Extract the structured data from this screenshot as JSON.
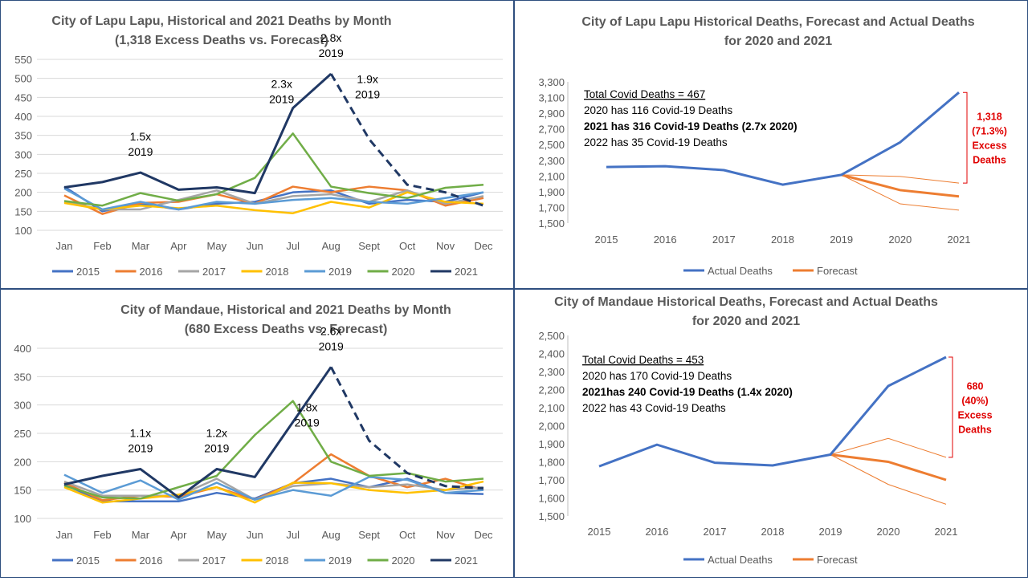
{
  "chart_data": [
    {
      "type": "line",
      "title": "City of Lapu Lapu, Historical and 2021 Deaths by Month",
      "subtitle": "(1,318 Excess Deaths vs. Forecast)",
      "categories": [
        "Jan",
        "Feb",
        "Mar",
        "Apr",
        "May",
        "Jun",
        "Jul",
        "Aug",
        "Sept",
        "Oct",
        "Nov",
        "Dec"
      ],
      "y_ticks": [
        "100",
        "150",
        "200",
        "250",
        "300",
        "350",
        "400",
        "450",
        "500",
        "550"
      ],
      "ylim": [
        100,
        550
      ],
      "grid": true,
      "legend": "bottom",
      "series": [
        {
          "name": "2015",
          "color": "#4472c4",
          "values": [
            215,
            150,
            170,
            155,
            170,
            175,
            200,
            205,
            170,
            180,
            175,
            200
          ]
        },
        {
          "name": "2016",
          "color": "#ed7d31",
          "values": [
            192,
            143,
            172,
            175,
            195,
            170,
            215,
            200,
            215,
            205,
            165,
            185
          ]
        },
        {
          "name": "2017",
          "color": "#a5a5a5",
          "values": [
            175,
            155,
            155,
            180,
            205,
            170,
            190,
            195,
            175,
            205,
            170,
            190
          ]
        },
        {
          "name": "2018",
          "color": "#ffc000",
          "values": [
            172,
            155,
            165,
            158,
            165,
            153,
            145,
            175,
            160,
            200,
            175,
            170
          ]
        },
        {
          "name": "2019",
          "color": "#5b9bd5",
          "values": [
            210,
            155,
            175,
            155,
            175,
            170,
            180,
            185,
            175,
            170,
            185,
            200
          ]
        },
        {
          "name": "2020",
          "color": "#70ad47",
          "values": [
            177,
            165,
            198,
            178,
            195,
            238,
            355,
            215,
            198,
            185,
            212,
            220
          ]
        },
        {
          "name": "2021",
          "color": "#203864",
          "values": [
            213,
            227,
            252,
            207,
            213,
            198,
            422,
            512,
            340,
            220,
            200,
            165
          ],
          "solid_upto": "Aug"
        }
      ],
      "annotations": [
        {
          "line1": "1.5x",
          "line2": "2019",
          "category": "Mar"
        },
        {
          "line1": "2.3x",
          "line2": "2019",
          "category": "Jul"
        },
        {
          "line1": "2.8x",
          "line2": "2019",
          "category": "Aug"
        },
        {
          "line1": "1.9x",
          "line2": "2019",
          "category": "Sept"
        }
      ]
    },
    {
      "type": "line",
      "title": "City of Lapu Lapu Historical Deaths, Forecast and Actual Deaths",
      "subtitle": "for 2020 and 2021",
      "categories": [
        "2015",
        "2016",
        "2017",
        "2018",
        "2019",
        "2020",
        "2021"
      ],
      "y_ticks": [
        "1,500",
        "1,700",
        "1,900",
        "2,100",
        "2,300",
        "2,500",
        "2,700",
        "2,900",
        "3,100",
        "3,300"
      ],
      "ylim": [
        1500,
        3300
      ],
      "legend": "bottom",
      "series": [
        {
          "name": "Actual Deaths",
          "color": "#4472c4",
          "values": [
            2215,
            2225,
            2175,
            1990,
            2115,
            2530,
            3165
          ]
        },
        {
          "name": "Forecast",
          "color": "#ed7d31",
          "values": [
            null,
            null,
            null,
            null,
            2115,
            1920,
            1840
          ]
        }
      ],
      "forecast_bounds": {
        "upper": [
          null,
          null,
          null,
          null,
          2115,
          2095,
          2010
        ],
        "lower": [
          null,
          null,
          null,
          null,
          2115,
          1745,
          1665
        ]
      },
      "textbox": [
        "Total Covid Deaths = 467",
        "2020 has 116 Covid-19 Deaths",
        "2021 has 316 Covid-19 Deaths (2.7x 2020)",
        "2022 has 35 Covid-19 Deaths"
      ],
      "excess_label": [
        "1,318",
        "(71.3%)",
        "Excess",
        "Deaths"
      ]
    },
    {
      "type": "line",
      "title": "City of Mandaue, Historical and 2021 Deaths by Month",
      "subtitle": "(680 Excess Deaths vs. Forecast)",
      "categories": [
        "Jan",
        "Feb",
        "Mar",
        "Apr",
        "May",
        "Jun",
        "Jul",
        "Aug",
        "Sept",
        "Oct",
        "Nov",
        "Dec"
      ],
      "y_ticks": [
        "100",
        "150",
        "200",
        "250",
        "300",
        "350",
        "400"
      ],
      "ylim": [
        100,
        400
      ],
      "grid": true,
      "legend": "bottom",
      "series": [
        {
          "name": "2015",
          "color": "#4472c4",
          "values": [
            160,
            130,
            130,
            130,
            145,
            135,
            162,
            170,
            155,
            170,
            145,
            143
          ]
        },
        {
          "name": "2016",
          "color": "#ed7d31",
          "values": [
            163,
            132,
            140,
            138,
            155,
            133,
            162,
            213,
            175,
            155,
            170,
            150
          ]
        },
        {
          "name": "2017",
          "color": "#a5a5a5",
          "values": [
            165,
            140,
            140,
            140,
            170,
            133,
            157,
            162,
            155,
            160,
            150,
            155
          ]
        },
        {
          "name": "2018",
          "color": "#ffc000",
          "values": [
            155,
            128,
            135,
            142,
            155,
            128,
            163,
            162,
            150,
            145,
            150,
            165
          ]
        },
        {
          "name": "2019",
          "color": "#5b9bd5",
          "values": [
            177,
            145,
            167,
            133,
            163,
            133,
            150,
            140,
            173,
            168,
            145,
            150
          ]
        },
        {
          "name": "2020",
          "color": "#70ad47",
          "values": [
            158,
            137,
            135,
            155,
            175,
            247,
            307,
            200,
            175,
            180,
            165,
            170
          ]
        },
        {
          "name": "2021",
          "color": "#203864",
          "values": [
            160,
            175,
            187,
            137,
            187,
            173,
            270,
            367,
            237,
            180,
            157,
            153
          ],
          "solid_upto": "Aug"
        }
      ],
      "annotations": [
        {
          "line1": "1.1x",
          "line2": "2019",
          "category": "Mar"
        },
        {
          "line1": "1.2x",
          "line2": "2019",
          "category": "May"
        },
        {
          "line1": "1.8x",
          "line2": "2019",
          "category": "Aug",
          "side": "left"
        },
        {
          "line1": "2.6x",
          "line2": "2019",
          "category": "Aug"
        }
      ]
    },
    {
      "type": "line",
      "title": "City of Mandaue Historical Deaths, Forecast and Actual Deaths",
      "subtitle": "for 2020 and 2021",
      "categories": [
        "2015",
        "2016",
        "2017",
        "2018",
        "2019",
        "2020",
        "2021"
      ],
      "y_ticks": [
        "1,500",
        "1,600",
        "1,700",
        "1,800",
        "1,900",
        "2,000",
        "2,100",
        "2,200",
        "2,300",
        "2,400",
        "2,500"
      ],
      "ylim": [
        1500,
        2500
      ],
      "legend": "bottom",
      "series": [
        {
          "name": "Actual Deaths",
          "color": "#4472c4",
          "values": [
            1775,
            1895,
            1795,
            1780,
            1840,
            2220,
            2380
          ]
        },
        {
          "name": "Forecast",
          "color": "#ed7d31",
          "values": [
            null,
            null,
            null,
            null,
            1840,
            1800,
            1700
          ]
        }
      ],
      "forecast_bounds": {
        "upper": [
          null,
          null,
          null,
          null,
          1840,
          1930,
          1825
        ],
        "lower": [
          null,
          null,
          null,
          null,
          1840,
          1675,
          1565
        ]
      },
      "textbox": [
        "Total Covid Deaths = 453",
        "2020 has 170 Covid-19 Deaths",
        "2021has 240 Covid-19 Deaths (1.4x 2020)",
        "2022 has 43 Covid-19 Deaths"
      ],
      "excess_label": [
        "680",
        "(40%)",
        "Excess",
        "Deaths"
      ]
    }
  ]
}
